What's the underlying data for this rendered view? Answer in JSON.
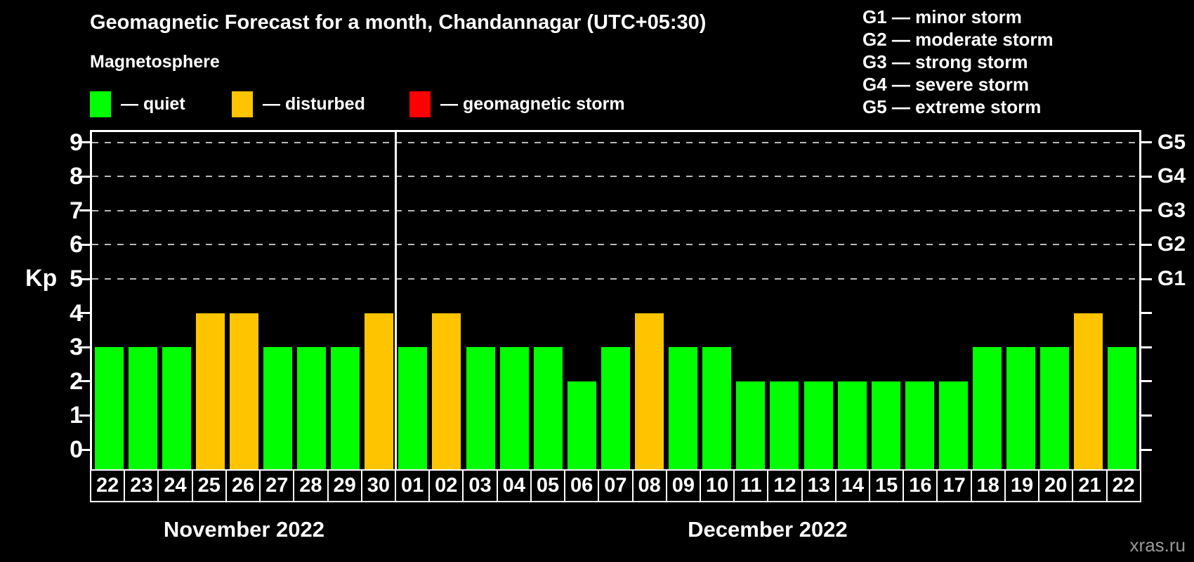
{
  "header": {
    "title": "Geomagnetic Forecast for a month, Chandannagar (UTC+05:30)",
    "subtitle": "Magnetosphere"
  },
  "magnetosphere_legend": [
    {
      "name": "quiet",
      "label": "— quiet",
      "color": "#00ff00"
    },
    {
      "name": "disturbed",
      "label": "— disturbed",
      "color": "#ffc400"
    },
    {
      "name": "geomagnetic-storm",
      "label": "— geomagnetic storm",
      "color": "#ff0000"
    }
  ],
  "g_storm_legend": [
    {
      "label": "G1 — minor storm"
    },
    {
      "label": "G2 — moderate storm"
    },
    {
      "label": "G3 — strong storm"
    },
    {
      "label": "G4 — severe storm"
    },
    {
      "label": "G5 — extreme storm"
    }
  ],
  "chart_data": {
    "type": "bar",
    "title": "Geomagnetic Forecast for a month, Chandannagar (UTC+05:30)",
    "ylabel": "Kp",
    "ylim": [
      0,
      9.5
    ],
    "yticks": [
      0,
      1,
      2,
      3,
      4,
      5,
      6,
      7,
      8,
      9
    ],
    "gridlines_at_kp": [
      5,
      6,
      7,
      8,
      9
    ],
    "grid": "dashed horizontal lines at Kp 5-9 only",
    "legend_position": "top-left",
    "right_axis": {
      "labels": [
        "G1",
        "G2",
        "G3",
        "G4",
        "G5"
      ],
      "at_kp": [
        5,
        6,
        7,
        8,
        9
      ]
    },
    "categories": [
      "22",
      "23",
      "24",
      "25",
      "26",
      "27",
      "28",
      "29",
      "30",
      "01",
      "02",
      "03",
      "04",
      "05",
      "06",
      "07",
      "08",
      "09",
      "10",
      "11",
      "12",
      "13",
      "14",
      "15",
      "16",
      "17",
      "18",
      "19",
      "20",
      "21",
      "22"
    ],
    "values": [
      3,
      3,
      3,
      4,
      4,
      3,
      3,
      3,
      4,
      3,
      4,
      3,
      3,
      3,
      2,
      3,
      4,
      3,
      3,
      2,
      2,
      2,
      2,
      2,
      2,
      2,
      3,
      3,
      3,
      4,
      3
    ],
    "statuses": [
      "quiet",
      "quiet",
      "quiet",
      "disturbed",
      "disturbed",
      "quiet",
      "quiet",
      "quiet",
      "disturbed",
      "quiet",
      "disturbed",
      "quiet",
      "quiet",
      "quiet",
      "quiet",
      "quiet",
      "disturbed",
      "quiet",
      "quiet",
      "quiet",
      "quiet",
      "quiet",
      "quiet",
      "quiet",
      "quiet",
      "quiet",
      "quiet",
      "quiet",
      "quiet",
      "disturbed",
      "quiet"
    ],
    "colors": {
      "quiet": "#00ff00",
      "disturbed": "#ffc400",
      "storm": "#ff0000"
    },
    "months": [
      {
        "label": "November 2022",
        "days": 9
      },
      {
        "label": "December 2022",
        "days": 22
      }
    ]
  },
  "watermark": "xras.ru"
}
